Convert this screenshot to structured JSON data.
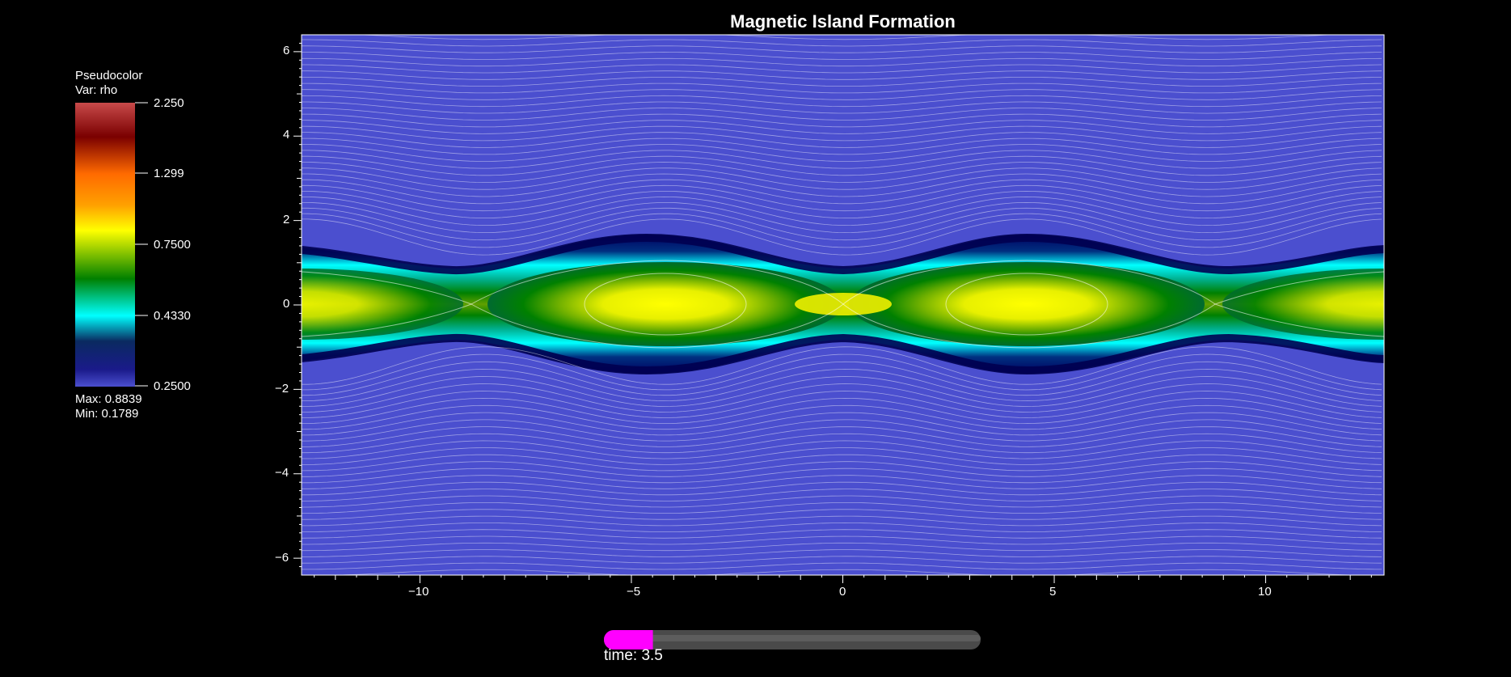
{
  "plot": {
    "title": "Magnetic Island Formation",
    "colors": {
      "background": "#000000",
      "low": "#4b4fcf",
      "mid_dark": "#000060",
      "cyan": "#00ffff",
      "green": "#008000",
      "yellow": "#ffff00",
      "contour": "#ffffff"
    }
  },
  "legend": {
    "plot_type": "Pseudocolor",
    "variable": "Var: rho",
    "ticks": [
      "2.250",
      "1.299",
      "0.7500",
      "0.4330",
      "0.2500"
    ],
    "max_label": "Max:",
    "max_value": "0.8839",
    "min_label": "Min:",
    "min_value": "0.1789",
    "gradient": [
      "#c84a4a",
      "#7a0000",
      "#ff6a00",
      "#ffa000",
      "#ffff00",
      "#008000",
      "#00ffff",
      "#0a2a60",
      "#4b4fcf"
    ]
  },
  "axes": {
    "x_ticks": [
      "−10",
      "−5",
      "0",
      "5",
      "10"
    ],
    "y_ticks": [
      "6",
      "4",
      "2",
      "0",
      "−2",
      "−4",
      "−6"
    ],
    "x_range": [
      -12.8,
      12.8
    ],
    "y_range": [
      -6.4,
      6.4
    ]
  },
  "time_slider": {
    "label": "time: 3.5",
    "progress": 0.13,
    "fill_color": "#ff00ff"
  }
}
